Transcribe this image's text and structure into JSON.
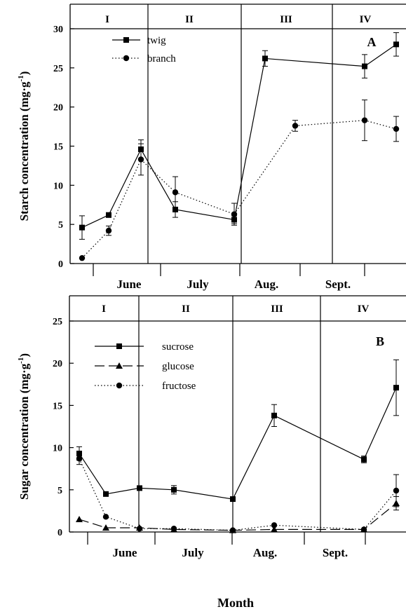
{
  "chart_data": [
    {
      "type": "line",
      "panel_label": "A",
      "ylabel": "Starch concentration (mg·g-1)",
      "ylabel_main": "Starch concentration (mg·g",
      "ylabel_sup": "-1",
      "ylabel_close": ")",
      "ylim": [
        0,
        30
      ],
      "yticks": [
        "0",
        "5",
        "10",
        "15",
        "20",
        "25",
        "30"
      ],
      "months": [
        "June",
        "July",
        "Aug.",
        "Sept."
      ],
      "periods": [
        "I",
        "II",
        "III",
        "IV"
      ],
      "legend_position": "top-left",
      "series": [
        {
          "name": "twig",
          "marker": "square",
          "line": "solid",
          "points": [
            [
              1,
              4.6
            ],
            [
              2,
              6.2
            ],
            [
              3,
              14.6
            ],
            [
              4,
              6.9
            ],
            [
              6,
              5.6
            ],
            [
              7,
              26.2
            ],
            [
              9,
              25.2
            ],
            [
              10,
              28.0
            ]
          ],
          "error": [
            1.5,
            0.3,
            1.2,
            1.0,
            0.5,
            1.0,
            1.5,
            1.5
          ]
        },
        {
          "name": "branch",
          "marker": "circle",
          "line": "dotted",
          "points": [
            [
              1,
              0.7
            ],
            [
              2,
              4.2
            ],
            [
              3,
              13.3
            ],
            [
              4,
              9.1
            ],
            [
              6,
              6.3
            ],
            [
              8,
              17.6
            ],
            [
              9,
              18.3
            ],
            [
              10,
              17.2
            ]
          ],
          "error": [
            0,
            0.6,
            2.0,
            2.0,
            1.4,
            0.7,
            2.6,
            1.6
          ]
        }
      ]
    },
    {
      "type": "line",
      "panel_label": "B",
      "ylabel": "Sugar concentration (mg·g-1)",
      "ylabel_main": "Sugar concentration (mg·g",
      "ylabel_sup": "-1",
      "ylabel_close": ")",
      "ylim": [
        0,
        25
      ],
      "yticks": [
        "0",
        "5",
        "10",
        "15",
        "20",
        "25"
      ],
      "months": [
        "June",
        "July",
        "Aug.",
        "Sept."
      ],
      "periods": [
        "I",
        "II",
        "III",
        "IV"
      ],
      "xlabel": "Month",
      "legend_position": "top-left",
      "series": [
        {
          "name": "sucrose",
          "marker": "square",
          "line": "solid",
          "points": [
            [
              1,
              9.3
            ],
            [
              2,
              4.5
            ],
            [
              3,
              5.2
            ],
            [
              4,
              5.0
            ],
            [
              5,
              3.9
            ],
            [
              6,
              13.8
            ],
            [
              7,
              8.6
            ],
            [
              8,
              17.1
            ]
          ],
          "error": [
            0.8,
            0,
            0,
            0.5,
            0,
            1.3,
            0.4,
            3.3
          ]
        },
        {
          "name": "glucose",
          "marker": "triangle",
          "line": "dashed",
          "points": [
            [
              1,
              1.5
            ],
            [
              2,
              0.5
            ],
            [
              3,
              0.5
            ],
            [
              4,
              0.3
            ],
            [
              5,
              0.2
            ],
            [
              6,
              0.3
            ],
            [
              7,
              0.3
            ],
            [
              8,
              3.4
            ]
          ],
          "error": [
            0,
            0,
            0,
            0,
            0,
            0,
            0,
            0.8
          ]
        },
        {
          "name": "fructose",
          "marker": "circle",
          "line": "dotted",
          "points": [
            [
              1,
              8.7
            ],
            [
              2,
              1.8
            ],
            [
              3,
              0.4
            ],
            [
              4,
              0.4
            ],
            [
              5,
              0.2
            ],
            [
              6,
              0.8
            ],
            [
              7,
              0.3
            ],
            [
              8,
              4.9
            ]
          ],
          "error": [
            0.7,
            0,
            0,
            0,
            0,
            0,
            0,
            1.9
          ]
        }
      ]
    }
  ]
}
